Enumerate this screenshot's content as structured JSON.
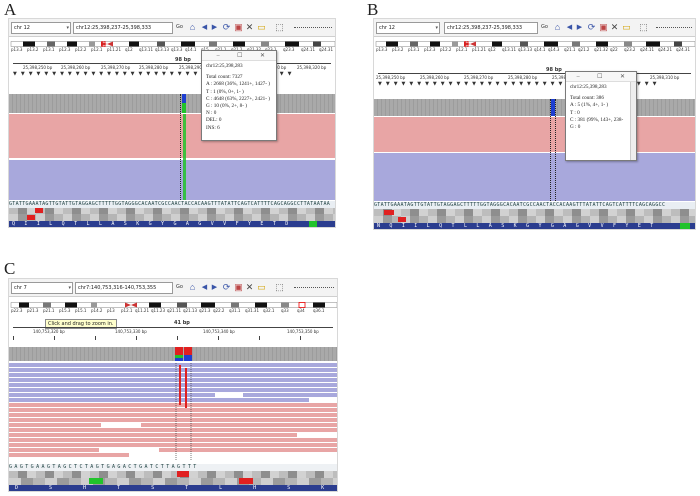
{
  "panels": {
    "a": {
      "letter": "A",
      "chr_value": "chr 12",
      "locus_value": "chr12:25,398,237-25,398,333",
      "go_label": "Go",
      "bands": [
        "p13.3",
        "p13.2",
        "p13.1",
        "p12.3",
        "p12.2",
        "p12.1",
        "p11.21",
        "q12",
        "q13.11",
        "q13.13",
        "q13.3",
        "q14.1",
        "q15",
        "q21.1",
        "q21.2",
        "q21.32",
        "q23.1",
        "q23.3",
        "q24.11",
        "q24.31"
      ],
      "ruler_span": "98 bp",
      "ruler_ticks": [
        "25,398,250 bp",
        "25,398,260 bp",
        "25,398,270 bp",
        "25,398,280 bp",
        "25,398,290 bp",
        "25,398,300 bp",
        "25,398,310 bp",
        "25,398,320 bp"
      ],
      "sequence": "GTATTGAAATAGTTGTATTGTAGGAGCTTTTTGGTAGGGCACAATCGCCAACTACCACAAGTTTATATTCAGTCATTTTCAGCAGGCCTTATAATAA",
      "amino_acids": "Q I I L Q T L L A S K G Y G A G V V F Y E T D",
      "popup": {
        "title": "chr12:25,398,283",
        "lines": [
          "Total count: 7327",
          "A : 2668 (36%, 1241+, 1427- )",
          "T : 1 (0%, 0+, 1- )",
          "C : 4648 (63%, 2227+, 2421- )",
          "G : 10 (0%, 2+, 8- )",
          "N : 0",
          "DEL: 0",
          "INS: 6"
        ]
      }
    },
    "b": {
      "letter": "B",
      "chr_value": "chr 12",
      "locus_value": "chr12:25,398,237-25,398,333",
      "go_label": "Go",
      "bands": [
        "p13.3",
        "p13.2",
        "p13.1",
        "p12.3",
        "p12.2",
        "p12.1",
        "p11.21",
        "q12",
        "q13.11",
        "q13.13",
        "q14.1",
        "q14.3",
        "q21.1",
        "q21.2",
        "q21.32",
        "q22",
        "q23.2",
        "q24.11",
        "q24.21",
        "q24.31"
      ],
      "ruler_span": "98 bp",
      "ruler_ticks": [
        "25,398,250 bp",
        "25,398,260 bp",
        "25,398,270 bp",
        "25,398,280 bp",
        "25,398,290 bp",
        "25,398,300 bp",
        "25,398,310 bp"
      ],
      "sequence": "GTATTGAAATAGTTGTATTGTAGGAGCTTTTTGGTAGGGCACAATCGCCAACTACCACAAGTTTATATTCAGTCATTTTCAGCAGGCC",
      "amino_acids": "N Q I I L Q T L L A S K G Y G A G V V F Y E T",
      "popup": {
        "title": "chr12:25,398,283",
        "lines": [
          "Total count: 386",
          "A : 5 (1%, 4+, 1- )",
          "T : 0",
          "C : 381 (99%, 143+, 238-",
          "G : 0"
        ]
      }
    },
    "c": {
      "letter": "C",
      "chr_value": "chr 7",
      "locus_value": "chr7:140,753,316-140,753,355",
      "go_label": "Go",
      "bands": [
        "p22.3",
        "p21.3",
        "p21.1",
        "p15.3",
        "p15.1",
        "p14.2",
        "p13",
        "p12.1",
        "q11.21",
        "q11.23",
        "q21.11",
        "q21.13",
        "q21.3",
        "q22.2",
        "q31.1",
        "q31.31",
        "q32.1",
        "q33",
        "q34",
        "q36.1"
      ],
      "ruler_span": "41 bp",
      "ruler_ticks": [
        "140,753,320 bp",
        "140,753,330 bp",
        "140,753,340 bp",
        "140,753,350 bp"
      ],
      "tooltip": "Click and drag to zoom in.",
      "sequence": "G A G T G A A G T A G C T C T A G T G A G A C T G A T C T T A G T T T",
      "amino_acids": "D S H T S T L H S K T E L I",
      "accent_red": "#e02020",
      "accent_blue": "#1f3fd0",
      "accent_green": "#21c32b"
    }
  }
}
